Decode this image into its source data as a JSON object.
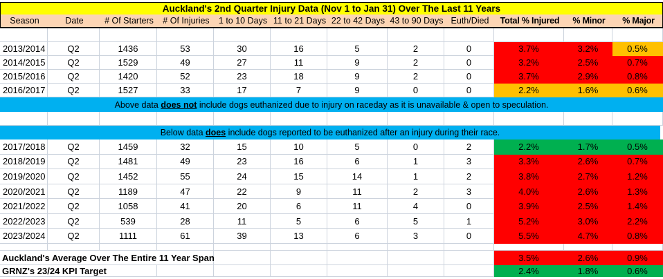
{
  "title": "Auckland's 2nd Quarter Injury Data (Nov 1 to Jan 31) Over The Last 11 Years",
  "columns": [
    "Season",
    "Date",
    "# Of Starters",
    "# Of Injuries",
    "1 to 10 Days",
    "11 to 21 Days",
    "22 to 42 Days",
    "43 to 90 Days",
    "Euth/Died",
    "Total % Injured",
    "% Minor",
    "% Major"
  ],
  "notes": {
    "above": {
      "prefix": "Above data ",
      "emphasis": "does not",
      "suffix": " include dogs euthanized due to injury on raceday as it is unavailable & open to speculation."
    },
    "below": {
      "prefix": "Below data ",
      "emphasis": "does",
      "suffix": " include dogs reported to be euthanized after an injury during their race."
    }
  },
  "rows_top": [
    {
      "cells": [
        "2013/2014",
        "Q2",
        "1436",
        "53",
        "30",
        "16",
        "5",
        "2",
        "0",
        "3.7%",
        "3.2%",
        "0.5%"
      ],
      "pct_colors": [
        "red",
        "red",
        "amber"
      ]
    },
    {
      "cells": [
        "2014/2015",
        "Q2",
        "1529",
        "49",
        "27",
        "11",
        "9",
        "2",
        "0",
        "3.2%",
        "2.5%",
        "0.7%"
      ],
      "pct_colors": [
        "red",
        "red",
        "red"
      ]
    },
    {
      "cells": [
        "2015/2016",
        "Q2",
        "1420",
        "52",
        "23",
        "18",
        "9",
        "2",
        "0",
        "3.7%",
        "2.9%",
        "0.8%"
      ],
      "pct_colors": [
        "red",
        "red",
        "red"
      ]
    },
    {
      "cells": [
        "2016/2017",
        "Q2",
        "1527",
        "33",
        "17",
        "7",
        "9",
        "0",
        "0",
        "2.2%",
        "1.6%",
        "0.6%"
      ],
      "pct_colors": [
        "amber",
        "amber",
        "amber"
      ]
    }
  ],
  "rows_bottom": [
    {
      "cells": [
        "2017/2018",
        "Q2",
        "1459",
        "32",
        "15",
        "10",
        "5",
        "0",
        "2",
        "2.2%",
        "1.7%",
        "0.5%"
      ],
      "pct_colors": [
        "green",
        "green",
        "green"
      ]
    },
    {
      "cells": [
        "2018/2019",
        "Q2",
        "1481",
        "49",
        "23",
        "16",
        "6",
        "1",
        "3",
        "3.3%",
        "2.6%",
        "0.7%"
      ],
      "pct_colors": [
        "red",
        "red",
        "red"
      ]
    },
    {
      "cells": [
        "2019/2020",
        "Q2",
        "1452",
        "55",
        "24",
        "15",
        "14",
        "1",
        "2",
        "3.8%",
        "2.7%",
        "1.2%"
      ],
      "pct_colors": [
        "red",
        "red",
        "red"
      ]
    },
    {
      "cells": [
        "2020/2021",
        "Q2",
        "1189",
        "47",
        "22",
        "9",
        "11",
        "2",
        "3",
        "4.0%",
        "2.6%",
        "1.3%"
      ],
      "pct_colors": [
        "red",
        "red",
        "red"
      ]
    },
    {
      "cells": [
        "2021/2022",
        "Q2",
        "1058",
        "41",
        "20",
        "6",
        "11",
        "4",
        "0",
        "3.9%",
        "2.5%",
        "1.4%"
      ],
      "pct_colors": [
        "red",
        "red",
        "red"
      ]
    },
    {
      "cells": [
        "2022/2023",
        "Q2",
        "539",
        "28",
        "11",
        "5",
        "6",
        "5",
        "1",
        "5.2%",
        "3.0%",
        "2.2%"
      ],
      "pct_colors": [
        "red",
        "red",
        "red"
      ]
    },
    {
      "cells": [
        "2023/2024",
        "Q2",
        "1111",
        "61",
        "39",
        "13",
        "6",
        "3",
        "0",
        "5.5%",
        "4.7%",
        "0.8%"
      ],
      "pct_colors": [
        "red",
        "red",
        "red"
      ]
    }
  ],
  "summary": [
    {
      "label": "Auckland's Average Over The Entire 11 Year Span",
      "values": [
        "3.5%",
        "2.6%",
        "0.9%"
      ],
      "color": "red"
    },
    {
      "label": "GRNZ's 23/24 KPI Target",
      "values": [
        "2.4%",
        "1.8%",
        "0.6%"
      ],
      "color": "green"
    }
  ],
  "colors": {
    "red": "#ff0000",
    "amber": "#ffc000",
    "green": "#00b050",
    "band_blue": "#00b0f0",
    "title_yellow": "#ffff00",
    "header_peach": "#fcd5b4"
  }
}
